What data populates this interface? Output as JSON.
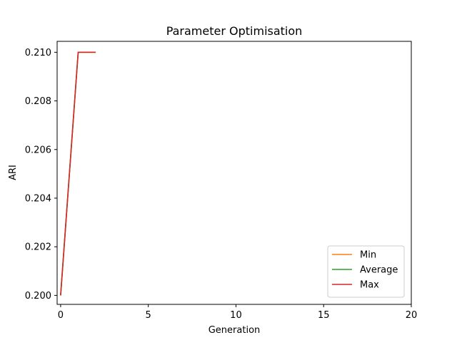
{
  "chart_data": {
    "type": "line",
    "title": "Parameter Optimisation",
    "xlabel": "Generation",
    "ylabel": "ARI",
    "xlim": [
      -0.2,
      20
    ],
    "ylim": [
      0.19963,
      0.21045
    ],
    "xticks": [
      0,
      5,
      10,
      15,
      20
    ],
    "yticks": [
      0.2,
      0.202,
      0.204,
      0.206,
      0.208,
      0.21
    ],
    "ytick_labels": [
      "0.200",
      "0.202",
      "0.204",
      "0.206",
      "0.208",
      "0.210"
    ],
    "grid": false,
    "legend_position": "bottom-right",
    "series": [
      {
        "name": "Min",
        "color": "#ff7f0e",
        "x": [
          0,
          1,
          2
        ],
        "y": [
          0.2,
          0.21,
          0.21
        ]
      },
      {
        "name": "Average",
        "color": "#2ca02c",
        "x": [
          0,
          1,
          2
        ],
        "y": [
          0.2,
          0.21,
          0.21
        ]
      },
      {
        "name": "Max",
        "color": "#d62728",
        "x": [
          0,
          1,
          2
        ],
        "y": [
          0.2,
          0.21,
          0.21
        ]
      }
    ]
  }
}
